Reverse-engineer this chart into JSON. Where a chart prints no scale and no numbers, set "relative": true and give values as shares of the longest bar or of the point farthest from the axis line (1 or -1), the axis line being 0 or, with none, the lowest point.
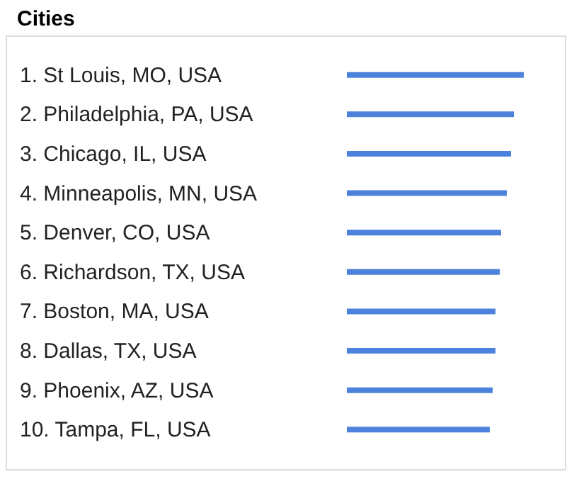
{
  "chart_data": {
    "type": "bar",
    "orientation": "horizontal",
    "relative": true,
    "title": "Cities",
    "color": "#4d82dc",
    "categories": [
      "1. St Louis, MO, USA",
      "2. Philadelphia, PA, USA",
      "3. Chicago, IL, USA",
      "4. Minneapolis, MN, USA",
      "5. Denver, CO, USA",
      "6. Richardson, TX, USA",
      "7. Boston, MA, USA",
      "8. Dallas, TX, USA",
      "9. Phoenix, AZ, USA",
      "10. Tampa, FL, USA"
    ],
    "values": [
      1,
      0.944,
      0.928,
      0.904,
      0.872,
      0.864,
      0.84,
      0.84,
      0.824,
      0.808
    ]
  }
}
